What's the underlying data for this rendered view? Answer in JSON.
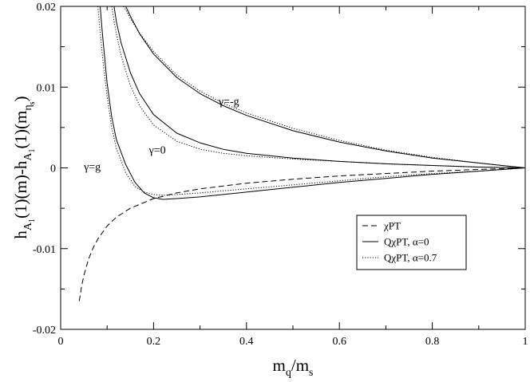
{
  "chart_data": {
    "type": "line",
    "xlabel": "m_q/m_s",
    "ylabel": "h_{A_1}(1)(m)-h_{A_1}(1)(m_{η_s})",
    "xlim": [
      0,
      1
    ],
    "ylim": [
      -0.02,
      0.02
    ],
    "grid": false,
    "legend_position": "bottom-right",
    "x_ticks": [
      "0",
      "0.2",
      "0.4",
      "0.6",
      "0.8",
      "1"
    ],
    "y_ticks": [
      "-0.02",
      "-0.01",
      "0",
      "0.01",
      "0.02"
    ],
    "legend": [
      {
        "label": "χPT",
        "style": "dashed"
      },
      {
        "label": "QχPT, α=0",
        "style": "solid"
      },
      {
        "label": "QχPT, α=0.7",
        "style": "dotted"
      }
    ],
    "annotations": [
      {
        "text": "γ=-g",
        "x": 0.34,
        "y": 0.0078
      },
      {
        "text": "γ=0",
        "x": 0.19,
        "y": 0.0018
      },
      {
        "text": "γ=g",
        "x": 0.05,
        "y": -0.0003
      }
    ],
    "series": [
      {
        "name": "χPT",
        "style": "dashed",
        "x": [
          0.04,
          0.045,
          0.05,
          0.06,
          0.07,
          0.08,
          0.1,
          0.12,
          0.15,
          0.2,
          0.25,
          0.3,
          0.4,
          0.5,
          0.6,
          0.7,
          0.8,
          0.9,
          1.0
        ],
        "y": [
          -0.0165,
          -0.0147,
          -0.0133,
          -0.0113,
          -0.0099,
          -0.0088,
          -0.0072,
          -0.0061,
          -0.005,
          -0.0038,
          -0.0031,
          -0.0026,
          -0.0019,
          -0.0014,
          -0.001,
          -0.0007,
          -0.0004,
          -0.0002,
          0.0
        ]
      },
      {
        "name": "QχPT, α=0 (γ=g)",
        "style": "solid",
        "x": [
          0.085,
          0.09,
          0.1,
          0.11,
          0.12,
          0.14,
          0.16,
          0.18,
          0.2,
          0.22,
          0.25,
          0.3,
          0.35,
          0.4,
          0.5,
          0.6,
          0.7,
          0.8,
          0.9,
          1.0
        ],
        "y": [
          0.02,
          0.0165,
          0.0105,
          0.0063,
          0.0035,
          0.0004,
          -0.0018,
          -0.0031,
          -0.0037,
          -0.0039,
          -0.0038,
          -0.0036,
          -0.0033,
          -0.003,
          -0.0024,
          -0.0018,
          -0.0013,
          -0.0008,
          -0.0004,
          0.0
        ]
      },
      {
        "name": "QχPT, α=0.7 (γ=g)",
        "style": "dotted",
        "x": [
          0.08,
          0.085,
          0.09,
          0.1,
          0.11,
          0.12,
          0.14,
          0.16,
          0.18,
          0.2,
          0.22,
          0.25,
          0.3,
          0.4,
          0.5,
          0.6,
          0.7,
          0.8,
          0.9,
          1.0
        ],
        "y": [
          0.02,
          0.0168,
          0.0138,
          0.0088,
          0.005,
          0.0024,
          -0.0006,
          -0.0023,
          -0.003,
          -0.0033,
          -0.0034,
          -0.0033,
          -0.0031,
          -0.0026,
          -0.0021,
          -0.0016,
          -0.0011,
          -0.0007,
          -0.0004,
          0.0
        ]
      },
      {
        "name": "QχPT, α=0 (γ=0)",
        "style": "solid",
        "x": [
          0.115,
          0.12,
          0.13,
          0.15,
          0.17,
          0.2,
          0.25,
          0.3,
          0.35,
          0.4,
          0.5,
          0.6,
          0.7,
          0.8,
          0.9,
          1.0
        ],
        "y": [
          0.02,
          0.0181,
          0.0155,
          0.0118,
          0.0092,
          0.0066,
          0.0043,
          0.0031,
          0.0023,
          0.0018,
          0.0012,
          0.0008,
          0.0005,
          0.0003,
          0.0001,
          0.0
        ]
      },
      {
        "name": "QχPT, α=0.7 (γ=0)",
        "style": "dotted",
        "x": [
          0.11,
          0.115,
          0.12,
          0.13,
          0.15,
          0.17,
          0.2,
          0.25,
          0.3,
          0.35,
          0.4,
          0.5,
          0.6,
          0.7,
          0.8,
          0.9,
          1.0
        ],
        "y": [
          0.02,
          0.0182,
          0.0166,
          0.0139,
          0.0102,
          0.0077,
          0.0053,
          0.0033,
          0.0023,
          0.0018,
          0.0015,
          0.0011,
          0.0008,
          0.0005,
          0.0003,
          0.0001,
          0.0
        ]
      },
      {
        "name": "QχPT, α=0 (γ=-g)",
        "style": "solid",
        "x": [
          0.14,
          0.15,
          0.17,
          0.2,
          0.25,
          0.3,
          0.35,
          0.4,
          0.5,
          0.6,
          0.7,
          0.8,
          0.9,
          1.0
        ],
        "y": [
          0.02,
          0.0188,
          0.0166,
          0.0141,
          0.0112,
          0.0092,
          0.0077,
          0.0065,
          0.0046,
          0.0032,
          0.0021,
          0.0012,
          0.0006,
          0.0
        ]
      },
      {
        "name": "QχPT, α=0.7 (γ=-g)",
        "style": "dotted",
        "x": [
          0.135,
          0.14,
          0.15,
          0.17,
          0.2,
          0.25,
          0.3,
          0.35,
          0.4,
          0.5,
          0.6,
          0.7,
          0.8,
          0.9,
          1.0
        ],
        "y": [
          0.02,
          0.0196,
          0.0185,
          0.0167,
          0.0144,
          0.0115,
          0.0095,
          0.008,
          0.0068,
          0.0049,
          0.0034,
          0.0022,
          0.0013,
          0.0006,
          0.0
        ]
      }
    ]
  }
}
